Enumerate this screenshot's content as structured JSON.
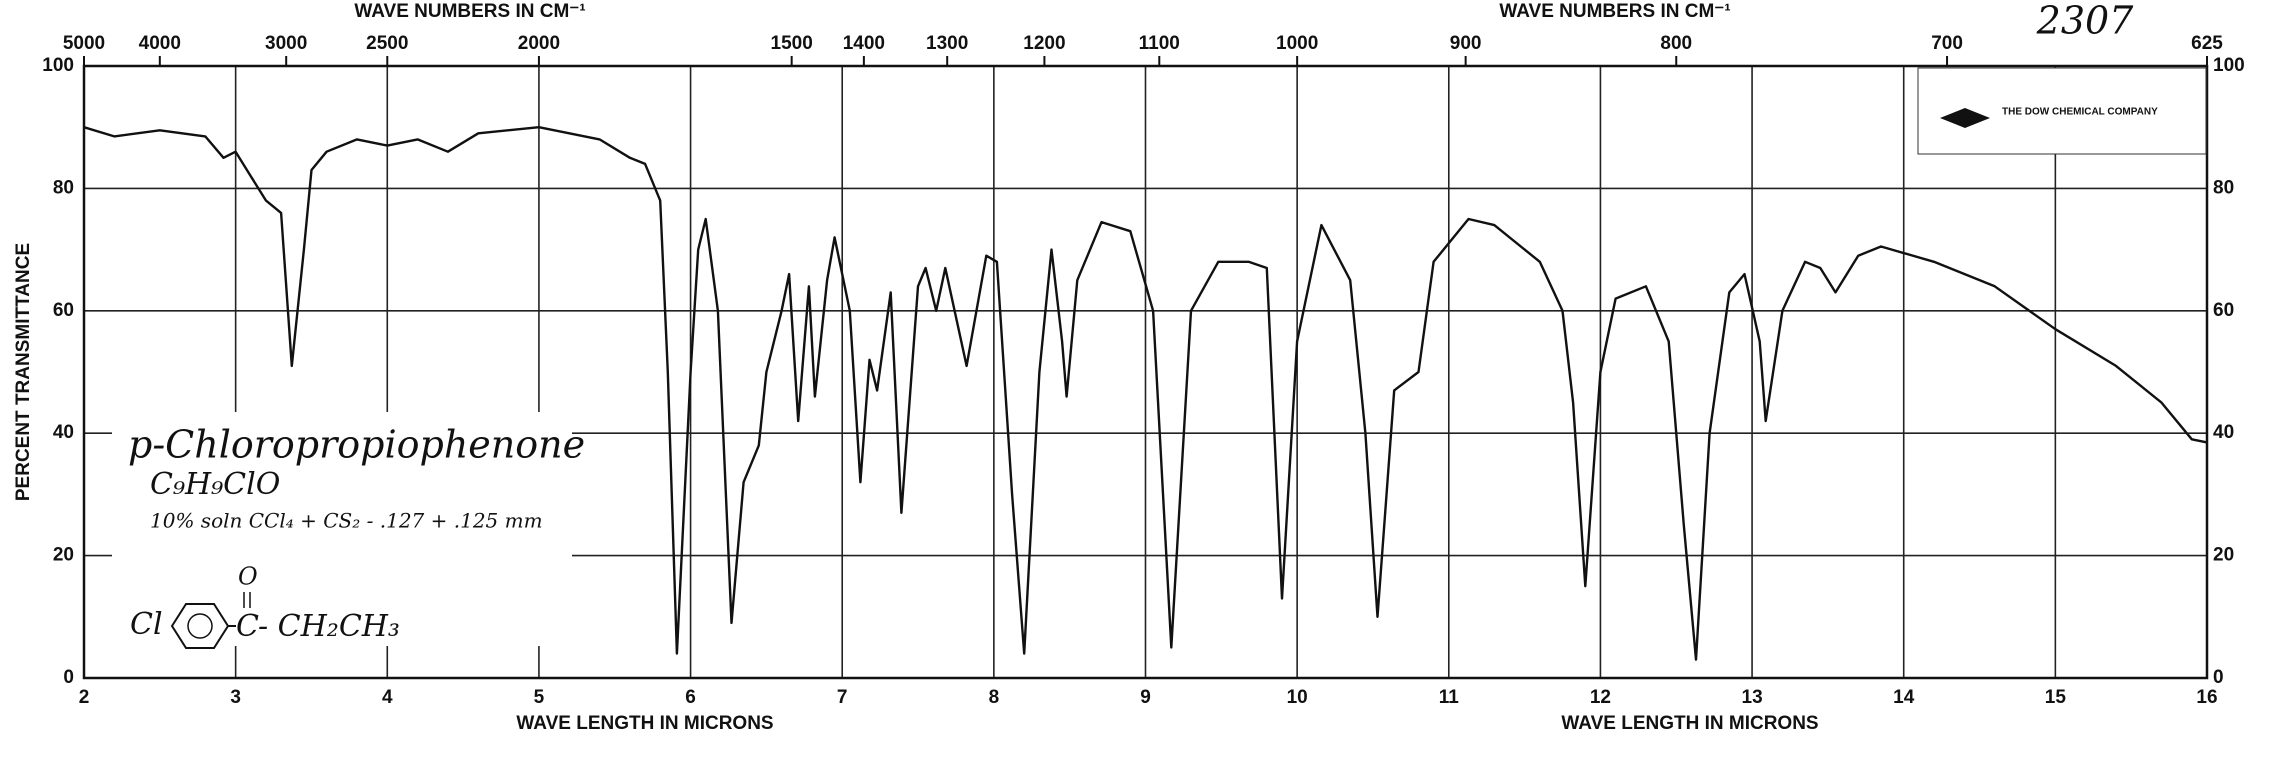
{
  "chart_data": {
    "type": "line",
    "chart_number": "2307",
    "company": "THE DOW CHEMICAL COMPANY",
    "top_axis_titles": [
      "WAVE NUMBERS IN CM⁻¹",
      "WAVE NUMBERS IN CM⁻¹"
    ],
    "bottom_axis_titles": [
      "WAVE LENGTH IN MICRONS",
      "WAVE LENGTH IN MICRONS"
    ],
    "y_label": "PERCENT TRANSMITTANCE",
    "annotations": [
      "p-Chloropropiophenone",
      "C₉H₉ClO",
      "10% soln CCl₄ + CS₂ - .127 + .125 mm"
    ],
    "structure": {
      "left": "Cl",
      "carbonyl_c": "C",
      "carbonyl_o": "O",
      "right": "- CH₂CH₃"
    },
    "color": "#111111",
    "grid": true,
    "xlim": [
      2,
      16
    ],
    "xticks": [
      2,
      3,
      4,
      5,
      6,
      7,
      8,
      9,
      10,
      11,
      12,
      13,
      14,
      15,
      16
    ],
    "x2ticks": [
      5000,
      4000,
      3000,
      2500,
      2000,
      1500,
      1400,
      1300,
      1200,
      1100,
      1000,
      900,
      800,
      700,
      625
    ],
    "ylim": [
      0,
      100
    ],
    "yticks": [
      0,
      20,
      40,
      60,
      80,
      100
    ],
    "x": [
      2.0,
      2.2,
      2.5,
      2.8,
      2.92,
      3.0,
      3.1,
      3.2,
      3.3,
      3.37,
      3.45,
      3.5,
      3.6,
      3.8,
      4.0,
      4.2,
      4.4,
      4.6,
      5.0,
      5.2,
      5.4,
      5.6,
      5.7,
      5.8,
      5.85,
      5.91,
      6.0,
      6.05,
      6.1,
      6.18,
      6.27,
      6.35,
      6.45,
      6.5,
      6.6,
      6.65,
      6.71,
      6.78,
      6.82,
      6.9,
      6.95,
      7.05,
      7.12,
      7.18,
      7.23,
      7.32,
      7.39,
      7.5,
      7.55,
      7.62,
      7.68,
      7.82,
      7.95,
      8.02,
      8.12,
      8.2,
      8.3,
      8.38,
      8.45,
      8.48,
      8.55,
      8.71,
      8.9,
      9.05,
      9.17,
      9.3,
      9.48,
      9.68,
      9.8,
      9.9,
      10.0,
      10.16,
      10.35,
      10.45,
      10.53,
      10.64,
      10.8,
      10.9,
      11.13,
      11.3,
      11.6,
      11.75,
      11.82,
      11.9,
      12.0,
      12.1,
      12.3,
      12.45,
      12.55,
      12.63,
      12.72,
      12.85,
      12.95,
      13.05,
      13.09,
      13.2,
      13.35,
      13.45,
      13.55,
      13.7,
      13.85,
      14.2,
      14.6,
      15.0,
      15.4,
      15.7,
      15.9,
      16.0
    ],
    "values": [
      90,
      88.5,
      89.5,
      88.5,
      85,
      86,
      82,
      78,
      76,
      51,
      70,
      83,
      86,
      88,
      87,
      88,
      86,
      89,
      90,
      89,
      88,
      85,
      84,
      78,
      50,
      4,
      50,
      70,
      75,
      60,
      9,
      32,
      38,
      50,
      60,
      66,
      42,
      64,
      46,
      65,
      72,
      60,
      32,
      52,
      47,
      63,
      27,
      64,
      67,
      60,
      67,
      51,
      69,
      68,
      30,
      4,
      50,
      70,
      55,
      46,
      65,
      74.5,
      73,
      60,
      5,
      60,
      68,
      68,
      67,
      13,
      55,
      74,
      65,
      40,
      10,
      47,
      50,
      68,
      75,
      74,
      68,
      60,
      45,
      15,
      50,
      62,
      64,
      55,
      25,
      3,
      40,
      63,
      66,
      55,
      42,
      60,
      68,
      67,
      63,
      69,
      70.5,
      68,
      64,
      57,
      51,
      45,
      39,
      38.5
    ]
  }
}
